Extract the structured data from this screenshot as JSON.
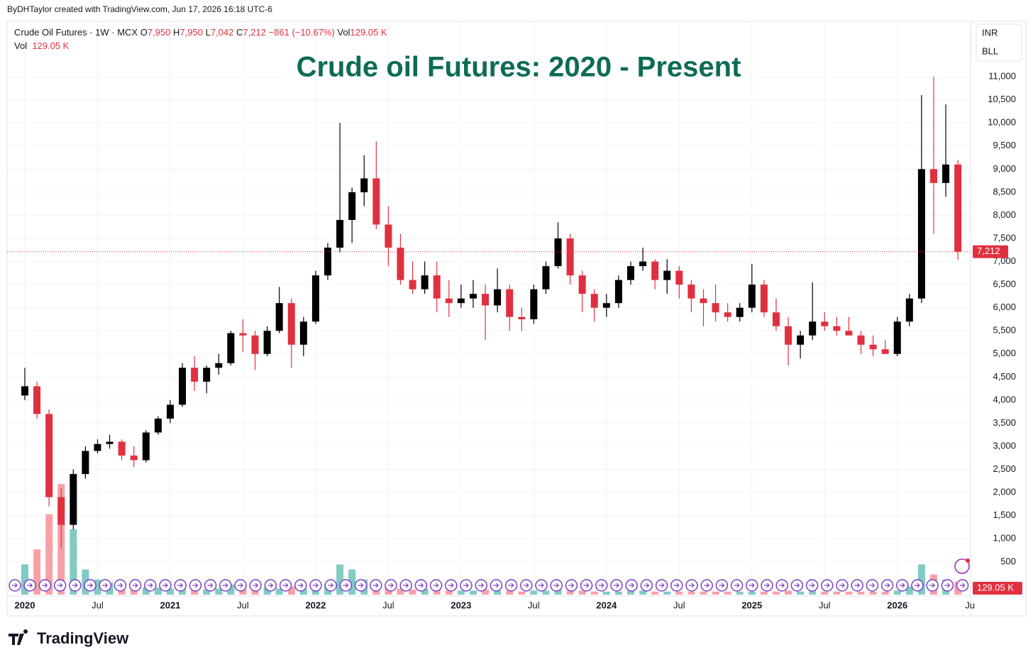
{
  "header": "ByDHTaylor created with TradingView.com, Jun 17, 2026 16:18 UTC-6",
  "brand": "TradingView",
  "chart_data": {
    "type": "candlestick",
    "title": "Crude oil Futures: 2020 - Present",
    "title_color": "#0d6b57",
    "legend": {
      "symbol": "Crude Oil Futures · 1W · MCX",
      "ohlc": [
        {
          "key": "O",
          "value": "7,950"
        },
        {
          "key": "H",
          "value": "7,950"
        },
        {
          "key": "L",
          "value": "7,042"
        },
        {
          "key": "C",
          "value": "7,212"
        }
      ],
      "change": "−861 (−10.67%)",
      "vol_key": "Vol",
      "vol_value": "129.05 K"
    },
    "currency": "INR",
    "unit": "BLL",
    "x": [
      "2020-01",
      "2020-02",
      "2020-03",
      "2020-04",
      "2020-05",
      "2020-06",
      "2020-07",
      "2020-08",
      "2020-09",
      "2020-10",
      "2020-11",
      "2020-12",
      "2021-01",
      "2021-02",
      "2021-03",
      "2021-04",
      "2021-05",
      "2021-06",
      "2021-07",
      "2021-08",
      "2021-09",
      "2021-10",
      "2021-11",
      "2021-12",
      "2022-01",
      "2022-02",
      "2022-03",
      "2022-04",
      "2022-05",
      "2022-06",
      "2022-07",
      "2022-08",
      "2022-09",
      "2022-10",
      "2022-11",
      "2022-12",
      "2023-01",
      "2023-02",
      "2023-03",
      "2023-04",
      "2023-05",
      "2023-06",
      "2023-07",
      "2023-08",
      "2023-09",
      "2023-10",
      "2023-11",
      "2023-12",
      "2024-01",
      "2024-02",
      "2024-03",
      "2024-04",
      "2024-05",
      "2024-06",
      "2024-07",
      "2024-08",
      "2024-09",
      "2024-10",
      "2024-11",
      "2024-12",
      "2025-01",
      "2025-02",
      "2025-03",
      "2025-04",
      "2025-05",
      "2025-06",
      "2025-07",
      "2025-08",
      "2025-09",
      "2025-10",
      "2025-11",
      "2025-12",
      "2026-01",
      "2026-02",
      "2026-03",
      "2026-04",
      "2026-05",
      "2026-06"
    ],
    "open": [
      4100,
      4300,
      3700,
      1900,
      1300,
      2400,
      2900,
      3050,
      3100,
      2800,
      2700,
      3300,
      3600,
      3900,
      4700,
      4400,
      4700,
      4800,
      5450,
      5400,
      5000,
      5500,
      6100,
      5200,
      5700,
      6700,
      7300,
      7900,
      8500,
      8800,
      7800,
      7300,
      6600,
      6400,
      6700,
      6200,
      6100,
      6200,
      6300,
      6050,
      6400,
      5800,
      5750,
      6400,
      6900,
      7500,
      6700,
      6300,
      6000,
      6100,
      6600,
      6900,
      7000,
      6600,
      6800,
      6500,
      6200,
      6100,
      5900,
      5800,
      6000,
      6500,
      5900,
      5600,
      5200,
      5400,
      5700,
      5600,
      5500,
      5400,
      5200,
      5100,
      5000,
      5700,
      6200,
      9000,
      8700,
      9100
    ],
    "high": [
      4700,
      4400,
      3800,
      2100,
      2500,
      3000,
      3150,
      3250,
      3150,
      3000,
      3350,
      3650,
      4000,
      4800,
      4950,
      4750,
      5000,
      5500,
      5750,
      5500,
      5600,
      6450,
      6200,
      5800,
      6800,
      7400,
      10000,
      8600,
      9300,
      9600,
      8200,
      7600,
      7000,
      7000,
      7000,
      6600,
      6500,
      6600,
      6500,
      6850,
      6500,
      6000,
      6500,
      7000,
      7850,
      7600,
      6800,
      6400,
      6300,
      6700,
      7000,
      7300,
      7050,
      7050,
      6900,
      6600,
      6400,
      6500,
      6100,
      6100,
      6950,
      6600,
      6200,
      5800,
      5500,
      6550,
      5900,
      5800,
      5800,
      5500,
      5400,
      5300,
      5800,
      6300,
      10600,
      11000,
      10400,
      9200
    ],
    "low": [
      4000,
      3600,
      1700,
      800,
      1200,
      2300,
      2850,
      2950,
      2700,
      2550,
      2650,
      3250,
      3500,
      3850,
      4200,
      4150,
      4550,
      4750,
      5050,
      4650,
      4950,
      5450,
      4700,
      4950,
      5650,
      6600,
      7200,
      7400,
      8200,
      7700,
      6900,
      6500,
      6300,
      6300,
      5900,
      5800,
      6000,
      6000,
      5300,
      5900,
      5500,
      5500,
      5650,
      6300,
      6850,
      6500,
      5900,
      5700,
      5800,
      6000,
      6500,
      6800,
      6400,
      6300,
      6200,
      5900,
      5600,
      5700,
      5700,
      5700,
      5900,
      5800,
      5500,
      4750,
      4900,
      5300,
      5500,
      5400,
      5400,
      5000,
      4950,
      5000,
      4950,
      5600,
      6100,
      7600,
      8400,
      7042
    ],
    "close": [
      4300,
      3700,
      1900,
      1300,
      2400,
      2900,
      3050,
      3100,
      2800,
      2700,
      3300,
      3600,
      3900,
      4700,
      4400,
      4700,
      4800,
      5450,
      5400,
      5000,
      5500,
      6100,
      5200,
      5700,
      6700,
      7300,
      7900,
      8500,
      8800,
      7800,
      7300,
      6600,
      6400,
      6700,
      6200,
      6100,
      6200,
      6300,
      6050,
      6400,
      5800,
      5750,
      6400,
      6900,
      7500,
      6700,
      6300,
      6000,
      6100,
      6600,
      6900,
      7000,
      6600,
      6800,
      6500,
      6200,
      6100,
      5900,
      5800,
      6000,
      6500,
      5900,
      5600,
      5200,
      5400,
      5700,
      5600,
      5500,
      5400,
      5200,
      5100,
      5000,
      5700,
      6200,
      9000,
      8700,
      9100,
      7212
    ],
    "volume": [
      300,
      450,
      800,
      1100,
      650,
      250,
      150,
      120,
      90,
      80,
      70,
      70,
      60,
      60,
      50,
      50,
      60,
      100,
      60,
      50,
      70,
      60,
      80,
      60,
      60,
      100,
      300,
      250,
      150,
      100,
      80,
      60,
      50,
      60,
      50,
      40,
      40,
      40,
      50,
      40,
      40,
      30,
      40,
      40,
      50,
      40,
      40,
      30,
      30,
      30,
      40,
      40,
      30,
      30,
      30,
      30,
      30,
      30,
      30,
      30,
      30,
      30,
      30,
      40,
      30,
      50,
      30,
      30,
      30,
      30,
      30,
      30,
      40,
      80,
      300,
      200,
      150,
      129.05
    ],
    "volume_lim": [
      0,
      1200
    ],
    "last_price": {
      "value": 7212,
      "label": "7,212"
    },
    "last_volume_label": "129.05 K",
    "up_color": "#000000",
    "down_color": "#e0303f",
    "volume_up_color": "#80cbc4",
    "volume_down_color": "#f7a1a7",
    "ylim": [
      -240,
      12200
    ],
    "yticks": [
      500,
      {
        "value": 1000,
        "label": "1,000"
      },
      {
        "value": 1500,
        "label": "1,500"
      },
      {
        "value": 2000,
        "label": "2,000"
      },
      {
        "value": 2500,
        "label": "2,500"
      },
      {
        "value": 3000,
        "label": "3,000"
      },
      {
        "value": 3500,
        "label": "3,500"
      },
      {
        "value": 4000,
        "label": "4,000"
      },
      {
        "value": 4500,
        "label": "4,500"
      },
      {
        "value": 5000,
        "label": "5,000"
      },
      {
        "value": 5500,
        "label": "5,500"
      },
      {
        "value": 6000,
        "label": "6,000"
      },
      {
        "value": 6500,
        "label": "6,500"
      },
      {
        "value": 7000,
        "label": "7,000"
      },
      {
        "value": 7500,
        "label": "7,500"
      },
      {
        "value": 8000,
        "label": "8,000"
      },
      {
        "value": 8500,
        "label": "8,500"
      },
      {
        "value": 9000,
        "label": "9,000"
      },
      {
        "value": 9500,
        "label": "9,500"
      },
      {
        "value": 10000,
        "label": "10,000"
      },
      {
        "value": 10500,
        "label": "10,500"
      },
      {
        "value": 11000,
        "label": "11,000"
      }
    ],
    "xticks": [
      {
        "value": "2020-01",
        "label": "2020"
      },
      {
        "value": "2020-07",
        "label": "Jul"
      },
      {
        "value": "2021-01",
        "label": "2021"
      },
      {
        "value": "2021-07",
        "label": "Jul"
      },
      {
        "value": "2022-01",
        "label": "2022"
      },
      {
        "value": "2022-07",
        "label": "Jul"
      },
      {
        "value": "2023-01",
        "label": "2023"
      },
      {
        "value": "2023-07",
        "label": "Jul"
      },
      {
        "value": "2024-01",
        "label": "2024"
      },
      {
        "value": "2024-07",
        "label": "Jul"
      },
      {
        "value": "2025-01",
        "label": "2025"
      },
      {
        "value": "2025-07",
        "label": "Jul"
      },
      {
        "value": "2026-01",
        "label": "2026"
      },
      {
        "value": "2026-07",
        "label": "Ju"
      }
    ],
    "grid": true
  }
}
